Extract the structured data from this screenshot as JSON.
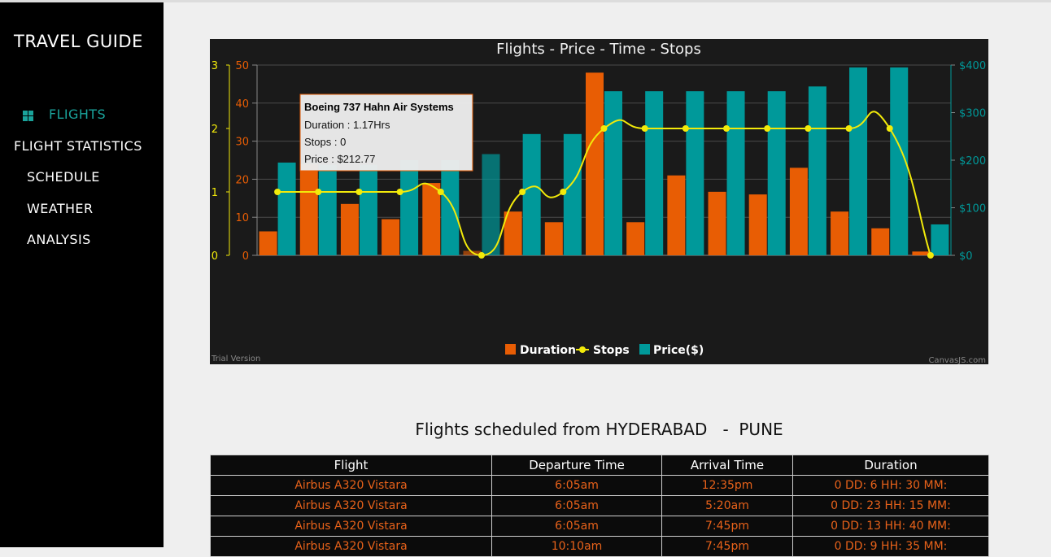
{
  "sidebar": {
    "brand": "TRAVEL GUIDE",
    "items": [
      {
        "label": "FLIGHTS",
        "icon": "grid-icon",
        "active": true
      },
      {
        "label": "FLIGHT STATISTICS"
      },
      {
        "label": "SCHEDULE"
      },
      {
        "label": "WEATHER"
      },
      {
        "label": "ANALYSIS"
      }
    ]
  },
  "colors": {
    "duration": "#e85d04",
    "stops": "#f2ea0a",
    "price": "#00999a",
    "accent": "#1aa39b",
    "table_text": "#e8621a"
  },
  "chart_data": {
    "type": "bar",
    "title": "Flights - Price - Time - Stops",
    "watermark_left": "Trial Version",
    "watermark_right": "CanvasJS.com",
    "axes": {
      "left_outer": {
        "ticks": [
          "0",
          "1",
          "2",
          "3"
        ],
        "range": [
          0,
          3
        ]
      },
      "left_inner": {
        "ticks": [
          "0",
          "10",
          "20",
          "30",
          "40",
          "50"
        ],
        "range": [
          0,
          50
        ]
      },
      "right": {
        "ticks": [
          "$0",
          "$100",
          "$200",
          "$300",
          "$400"
        ],
        "range": [
          0,
          400
        ]
      }
    },
    "legend": [
      "Duration",
      "Stops",
      "Price($)"
    ],
    "legend_position": "bottom",
    "grid": true,
    "series": [
      {
        "name": "Duration",
        "type": "bar",
        "values": [
          6.3,
          24,
          13.5,
          9.5,
          19,
          1.17,
          11.5,
          8.7,
          48,
          8.7,
          21,
          16.7,
          16,
          23,
          11.5,
          7.1,
          1
        ]
      },
      {
        "name": "Stops",
        "type": "line",
        "values": [
          1,
          1,
          1,
          1,
          1,
          0,
          1,
          1,
          2,
          2,
          2,
          2,
          2,
          2,
          2,
          2,
          0
        ]
      },
      {
        "name": "Price($)",
        "type": "bar",
        "values": [
          195,
          190,
          190,
          200,
          200,
          212.77,
          255,
          255,
          345,
          345,
          345,
          345,
          345,
          355,
          395,
          395,
          65
        ]
      }
    ],
    "tooltip": {
      "index": 5,
      "title": "Boeing 737 Hahn Air Systems",
      "lines": [
        "Duration : 1.17Hrs",
        "Stops : 0",
        "Price : $212.77"
      ]
    }
  },
  "schedule": {
    "title": "Flights scheduled from HYDERABAD   -  PUNE",
    "headers": [
      "Flight",
      "Departure Time",
      "Arrival Time",
      "Duration"
    ],
    "rows": [
      [
        "Airbus A320 Vistara",
        "6:05am",
        "12:35pm",
        "0 DD: 6 HH: 30 MM:"
      ],
      [
        "Airbus A320 Vistara",
        "6:05am",
        "5:20am",
        "0 DD: 23 HH: 15 MM:"
      ],
      [
        "Airbus A320 Vistara",
        "6:05am",
        "7:45pm",
        "0 DD: 13 HH: 40 MM:"
      ],
      [
        "Airbus A320 Vistara",
        "10:10am",
        "7:45pm",
        "0 DD: 9 HH: 35 MM:"
      ]
    ]
  }
}
